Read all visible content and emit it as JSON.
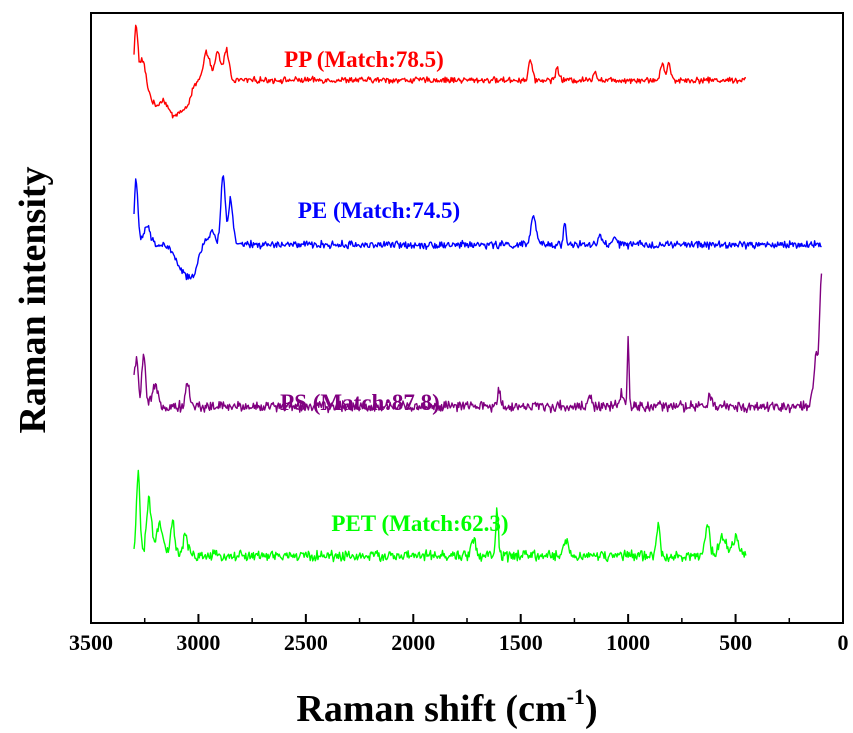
{
  "chart_data": {
    "type": "line",
    "xlabel": "Raman shift (cm",
    "xlabel_superscript": "-1",
    "xlabel_close": ")",
    "ylabel": "Raman intensity",
    "xlim": [
      3500,
      0
    ],
    "ylim": [
      0,
      10
    ],
    "x_reversed": true,
    "y_ticks_shown": false,
    "x_ticks": [
      3500,
      3000,
      2500,
      2000,
      1500,
      1000,
      500,
      0
    ],
    "x_tick_labels": [
      "3500",
      "3000",
      "2500",
      "2000",
      "1500",
      "1000",
      "500",
      "0"
    ],
    "grid": false,
    "series": [
      {
        "name": "PP",
        "label": "PP (Match:78.5)",
        "color": "#ff0000",
        "x_range": [
          3300,
          450
        ],
        "baseline": 8.9,
        "noise": 0.04,
        "peaks": [
          {
            "x": 3290,
            "height": 0.9,
            "width": 8
          },
          {
            "x": 3260,
            "height": 0.35,
            "width": 12
          },
          {
            "x": 3200,
            "height": -0.4,
            "width": 25
          },
          {
            "x": 3120,
            "height": -0.55,
            "width": 30
          },
          {
            "x": 3060,
            "height": -0.4,
            "width": 25
          },
          {
            "x": 2960,
            "height": 0.45,
            "width": 15
          },
          {
            "x": 2910,
            "height": 0.45,
            "width": 12
          },
          {
            "x": 2870,
            "height": 0.5,
            "width": 12
          },
          {
            "x": 1455,
            "height": 0.35,
            "width": 8
          },
          {
            "x": 1330,
            "height": 0.2,
            "width": 8
          },
          {
            "x": 1155,
            "height": 0.15,
            "width": 8
          },
          {
            "x": 840,
            "height": 0.3,
            "width": 8
          },
          {
            "x": 810,
            "height": 0.28,
            "width": 8
          }
        ]
      },
      {
        "name": "PE",
        "label": "PE (Match:74.5)",
        "color": "#0000ff",
        "x_range": [
          3300,
          100
        ],
        "baseline": 6.2,
        "noise": 0.05,
        "peaks": [
          {
            "x": 3290,
            "height": 1.1,
            "width": 8
          },
          {
            "x": 3240,
            "height": 0.3,
            "width": 15
          },
          {
            "x": 3080,
            "height": -0.35,
            "width": 30
          },
          {
            "x": 3030,
            "height": -0.45,
            "width": 25
          },
          {
            "x": 2940,
            "height": 0.2,
            "width": 18
          },
          {
            "x": 2885,
            "height": 1.15,
            "width": 10
          },
          {
            "x": 2850,
            "height": 0.75,
            "width": 10
          },
          {
            "x": 1440,
            "height": 0.45,
            "width": 12
          },
          {
            "x": 1295,
            "height": 0.4,
            "width": 6
          },
          {
            "x": 1130,
            "height": 0.15,
            "width": 8
          },
          {
            "x": 1060,
            "height": 0.15,
            "width": 8
          }
        ]
      },
      {
        "name": "PS",
        "label": "PS (Match:87.8)",
        "color": "#800080",
        "x_range": [
          3300,
          100
        ],
        "baseline": 3.55,
        "noise": 0.07,
        "peaks": [
          {
            "x": 3290,
            "height": 0.75,
            "width": 10
          },
          {
            "x": 3255,
            "height": 0.85,
            "width": 8
          },
          {
            "x": 3200,
            "height": 0.3,
            "width": 15
          },
          {
            "x": 3050,
            "height": 0.35,
            "width": 10
          },
          {
            "x": 1600,
            "height": 0.25,
            "width": 8
          },
          {
            "x": 1180,
            "height": 0.2,
            "width": 8
          },
          {
            "x": 1030,
            "height": 0.25,
            "width": 6
          },
          {
            "x": 1000,
            "height": 1.1,
            "width": 4
          },
          {
            "x": 620,
            "height": 0.15,
            "width": 8
          },
          {
            "x": 125,
            "height": 0.8,
            "width": 12
          },
          {
            "x": 100,
            "height": 2.0,
            "width": 8
          }
        ]
      },
      {
        "name": "PET",
        "label": "PET (Match:62.3)",
        "color": "#00ff00",
        "x_range": [
          3300,
          450
        ],
        "baseline": 1.1,
        "noise": 0.07,
        "peaks": [
          {
            "x": 3280,
            "height": 1.4,
            "width": 8
          },
          {
            "x": 3230,
            "height": 0.9,
            "width": 12
          },
          {
            "x": 3180,
            "height": 0.5,
            "width": 15
          },
          {
            "x": 3120,
            "height": 0.55,
            "width": 10
          },
          {
            "x": 3060,
            "height": 0.35,
            "width": 10
          },
          {
            "x": 1720,
            "height": 0.3,
            "width": 10
          },
          {
            "x": 1610,
            "height": 0.75,
            "width": 6
          },
          {
            "x": 1290,
            "height": 0.25,
            "width": 12
          },
          {
            "x": 860,
            "height": 0.5,
            "width": 8
          },
          {
            "x": 630,
            "height": 0.5,
            "width": 10
          },
          {
            "x": 560,
            "height": 0.35,
            "width": 15
          },
          {
            "x": 500,
            "height": 0.3,
            "width": 15
          }
        ]
      }
    ]
  }
}
